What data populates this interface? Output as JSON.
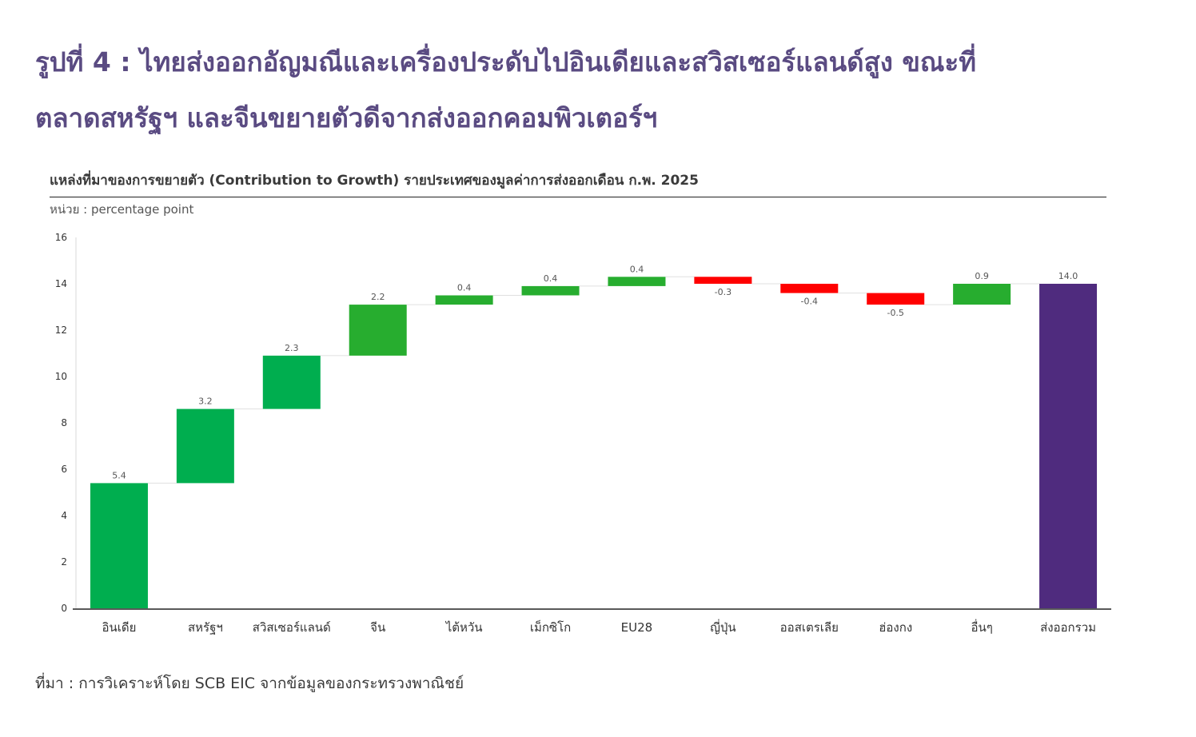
{
  "heading": {
    "line1": "รูปที่ 4 : ไทยส่งออกอัญมณีและเครื่องประดับไปอินเดียและสวิสเซอร์แลนด์สูง ขณะที่",
    "line2": "ตลาดสหรัฐฯ และจีนขยายตัวดีจากส่งออกคอมพิวเตอร์ฯ"
  },
  "source": "ที่มา : การวิเคราะห์โดย SCB EIC จากข้อมูลของกระทรวงพาณิชย์",
  "colors": {
    "positive": "#00ae4f",
    "positive_alt": "#27ad2f",
    "negative": "#ff0000",
    "total": "#4f2b7e"
  },
  "chart_data": {
    "type": "bar",
    "subtype": "waterfall",
    "title": "แหล่งที่มาของการขยายตัว (Contribution to Growth) รายประเทศของมูลค่าการส่งออกเดือน ก.พ. 2025",
    "unit_label": "หน่วย : percentage point",
    "xlabel": "",
    "ylabel": "",
    "ylim": [
      0,
      16
    ],
    "yticks": [
      0,
      2,
      4,
      6,
      8,
      10,
      12,
      14,
      16
    ],
    "grid": false,
    "legend": "none",
    "categories": [
      "อินเดีย",
      "สหรัฐฯ",
      "สวิสเซอร์แลนด์",
      "จีน",
      "ไต้หวัน",
      "เม็กซิโก",
      "EU28",
      "ญี่ปุ่น",
      "ออสเตรเลีย",
      "ฮ่องกง",
      "อื่นๆ",
      "ส่งออกรวม"
    ],
    "values": [
      5.4,
      3.2,
      2.3,
      2.2,
      0.4,
      0.4,
      0.4,
      -0.3,
      -0.4,
      -0.5,
      0.9,
      14.0
    ],
    "value_labels": [
      "5.4",
      "3.2",
      "2.3",
      "2.2",
      "0.4",
      "0.4",
      "0.4",
      "-0.3",
      "-0.4",
      "-0.5",
      "0.9",
      "14.0"
    ],
    "bar_kind": [
      "increase",
      "increase",
      "increase",
      "increase",
      "increase",
      "increase",
      "increase",
      "decrease",
      "decrease",
      "decrease",
      "increase",
      "total"
    ]
  }
}
